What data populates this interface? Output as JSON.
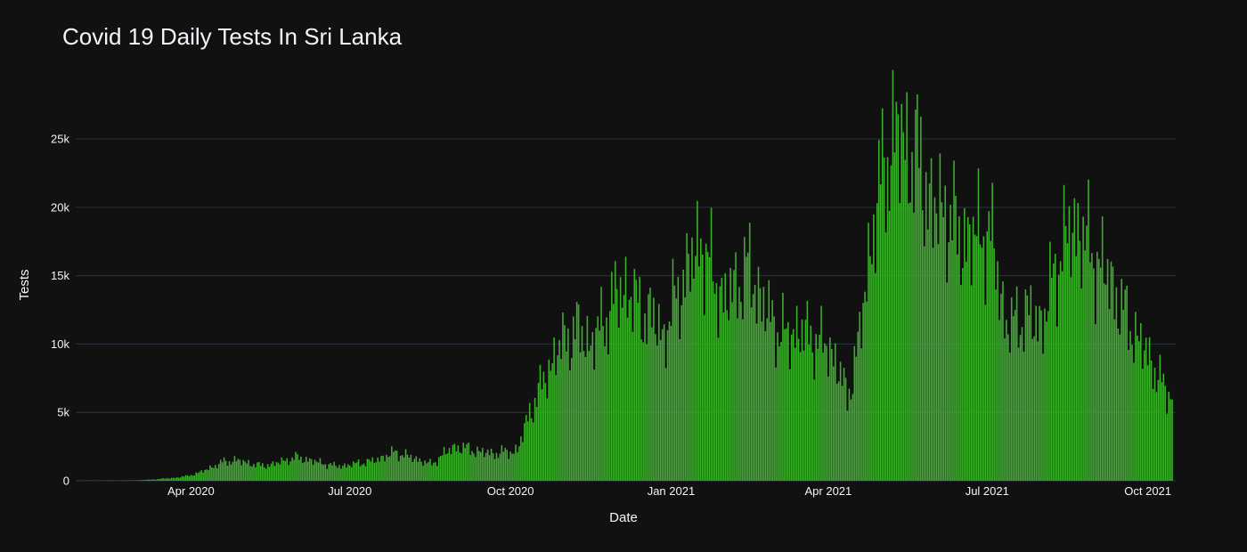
{
  "chart_data": {
    "type": "bar",
    "title": "Covid 19 Daily Tests In Sri Lanka",
    "xlabel": "Date",
    "ylabel": "Tests",
    "x_range": [
      "2020-01-26",
      "2021-10-17"
    ],
    "ylim": [
      0,
      29300
    ],
    "y_ticks": [
      0,
      5000,
      10000,
      15000,
      20000,
      25000
    ],
    "y_tick_labels": [
      "0",
      "5k",
      "10k",
      "15k",
      "20k",
      "25k"
    ],
    "x_ticks": [
      "2020-04-01",
      "2020-07-01",
      "2020-10-01",
      "2021-01-01",
      "2021-04-01",
      "2021-07-01",
      "2021-10-01"
    ],
    "x_tick_labels": [
      "Apr 2020",
      "Jul 2020",
      "Oct 2020",
      "Jan 2021",
      "Apr 2021",
      "Jul 2021",
      "Oct 2021"
    ],
    "grid": true,
    "bar_color": "#3cb02c",
    "background": "#111111",
    "gridline_color": "#283442",
    "series": [
      {
        "x": [
          "2020-01-27",
          "2020-02-10",
          "2020-02-24",
          "2020-03-02",
          "2020-03-09",
          "2020-03-16",
          "2020-03-23",
          "2020-03-30",
          "2020-04-06",
          "2020-04-13",
          "2020-04-20",
          "2020-04-27",
          "2020-05-04",
          "2020-05-11",
          "2020-05-18",
          "2020-05-25",
          "2020-06-01",
          "2020-06-08",
          "2020-06-15",
          "2020-06-22",
          "2020-06-29",
          "2020-07-06",
          "2020-07-13",
          "2020-07-20",
          "2020-07-27",
          "2020-08-03",
          "2020-08-10",
          "2020-08-17",
          "2020-08-24",
          "2020-08-31",
          "2020-09-07",
          "2020-09-14",
          "2020-09-21",
          "2020-09-28",
          "2020-10-05",
          "2020-10-12",
          "2020-10-19",
          "2020-10-26",
          "2020-11-02",
          "2020-11-09",
          "2020-11-16",
          "2020-11-23",
          "2020-11-30",
          "2020-12-07",
          "2020-12-14",
          "2020-12-21",
          "2020-12-28",
          "2021-01-04",
          "2021-01-11",
          "2021-01-18",
          "2021-01-25",
          "2021-02-01",
          "2021-02-08",
          "2021-02-15",
          "2021-02-22",
          "2021-03-01",
          "2021-03-08",
          "2021-03-15",
          "2021-03-22",
          "2021-03-29",
          "2021-04-05",
          "2021-04-12",
          "2021-04-19",
          "2021-04-26",
          "2021-05-03",
          "2021-05-10",
          "2021-05-17",
          "2021-05-24",
          "2021-05-31",
          "2021-06-07",
          "2021-06-14",
          "2021-06-21",
          "2021-06-28",
          "2021-07-05",
          "2021-07-12",
          "2021-07-19",
          "2021-07-26",
          "2021-08-02",
          "2021-08-09",
          "2021-08-16",
          "2021-08-23",
          "2021-08-30",
          "2021-09-06",
          "2021-09-13",
          "2021-09-20",
          "2021-09-27",
          "2021-10-04",
          "2021-10-11",
          "2021-10-15"
        ],
        "y": [
          10,
          15,
          20,
          40,
          80,
          150,
          220,
          350,
          600,
          1000,
          1400,
          1500,
          1300,
          1100,
          1200,
          1500,
          1700,
          1500,
          1300,
          1100,
          1100,
          1300,
          1400,
          1700,
          2100,
          1800,
          1500,
          1200,
          2000,
          2500,
          2300,
          2100,
          2000,
          2100,
          2200,
          5000,
          7000,
          9000,
          10500,
          11000,
          10000,
          11500,
          13500,
          14000,
          12500,
          12000,
          10500,
          13500,
          15500,
          17500,
          15000,
          13000,
          14500,
          15500,
          13000,
          11500,
          10500,
          11000,
          10500,
          10000,
          9000,
          6000,
          10500,
          18000,
          23000,
          25500,
          24000,
          23000,
          19500,
          20000,
          18000,
          17500,
          18500,
          17000,
          11000,
          12000,
          12000,
          11500,
          15500,
          18000,
          18500,
          16500,
          15500,
          13500,
          11500,
          10000,
          8500,
          6500,
          6500
        ]
      }
    ]
  }
}
